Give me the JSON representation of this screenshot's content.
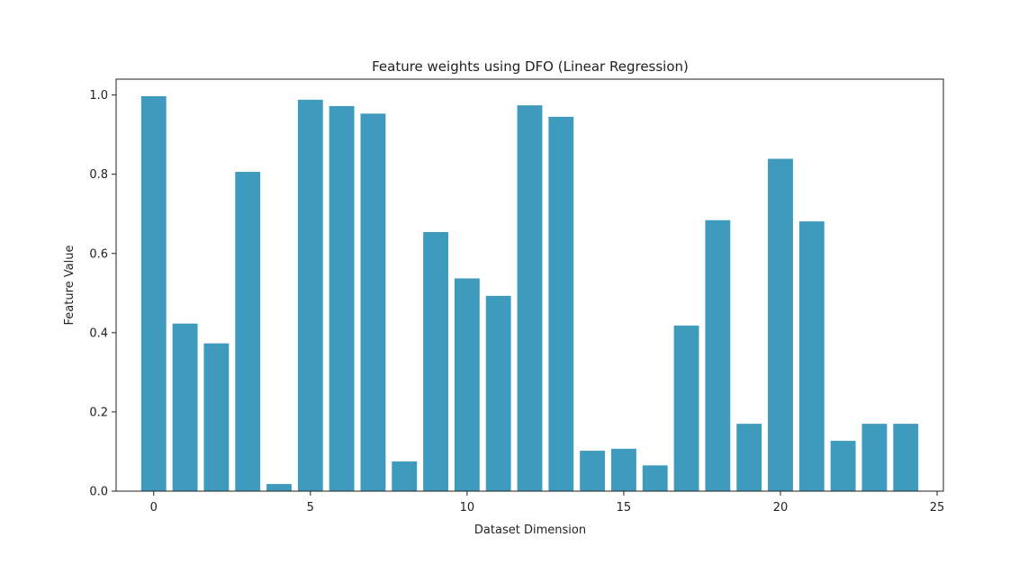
{
  "chart_data": {
    "type": "bar",
    "title": "Feature weights using DFO (Linear Regression)",
    "xlabel": "Dataset Dimension",
    "ylabel": "Feature Value",
    "x": [
      0,
      1,
      2,
      3,
      4,
      5,
      6,
      7,
      8,
      9,
      10,
      11,
      12,
      13,
      14,
      15,
      16,
      17,
      18,
      19,
      20,
      21,
      22,
      23,
      24
    ],
    "values": [
      0.997,
      0.423,
      0.373,
      0.806,
      0.018,
      0.988,
      0.972,
      0.953,
      0.075,
      0.654,
      0.537,
      0.493,
      0.974,
      0.945,
      0.102,
      0.107,
      0.065,
      0.418,
      0.684,
      0.17,
      0.839,
      0.681,
      0.127,
      0.17,
      0.17
    ],
    "xlim": [
      -1.2,
      25.2
    ],
    "ylim": [
      0,
      1.04
    ],
    "xticks": [
      0,
      5,
      10,
      15,
      20,
      25
    ],
    "yticks": [
      0.0,
      0.2,
      0.4,
      0.6,
      0.8,
      1.0
    ],
    "bar_color": "#3f9bbd",
    "grid": false
  }
}
